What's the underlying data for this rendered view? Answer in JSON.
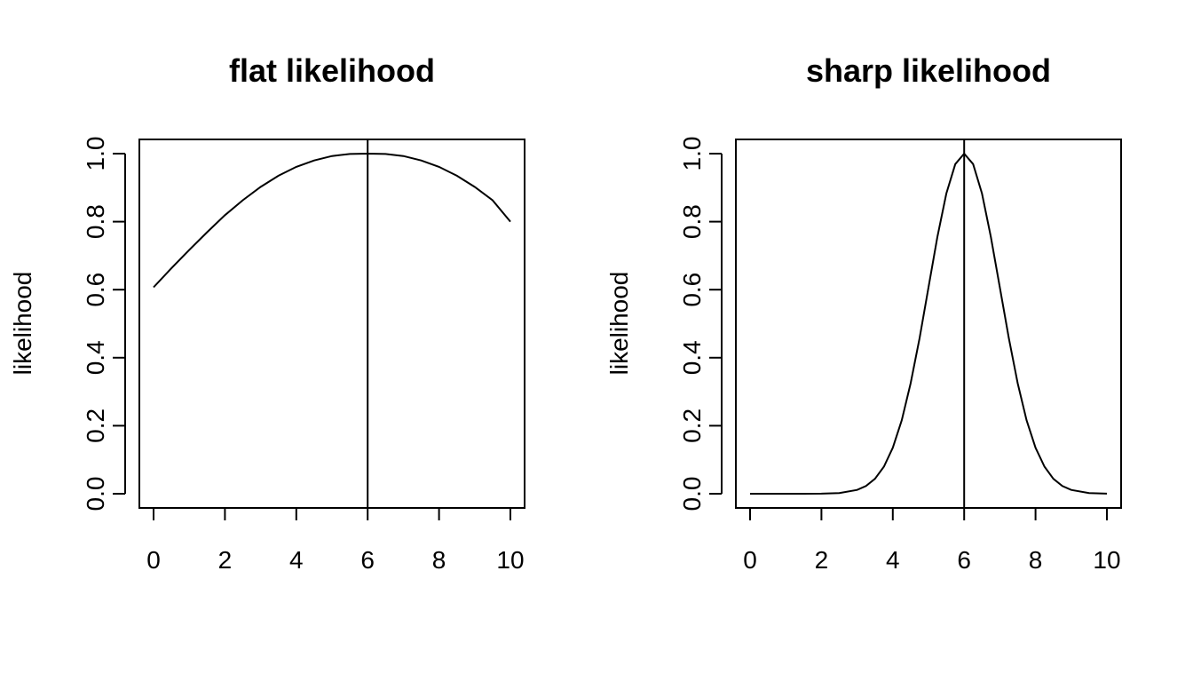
{
  "chart_data": [
    {
      "type": "line",
      "title": "flat likelihood",
      "xlabel": "",
      "ylabel": "likelihood",
      "xlim": [
        0,
        10
      ],
      "ylim": [
        0,
        1
      ],
      "xticks": [
        "0",
        "2",
        "4",
        "6",
        "8",
        "10"
      ],
      "yticks": [
        "0.0",
        "0.2",
        "0.4",
        "0.6",
        "0.8",
        "1.0"
      ],
      "vline": 6,
      "grid": false,
      "series": [
        {
          "x": [
            0,
            0.5,
            1,
            1.5,
            2,
            2.5,
            3,
            3.5,
            4,
            4.5,
            5,
            5.5,
            6,
            6.5,
            7,
            7.5,
            8,
            8.5,
            9,
            9.5,
            10
          ],
          "y": [
            0.607,
            0.663,
            0.717,
            0.769,
            0.819,
            0.863,
            0.902,
            0.935,
            0.961,
            0.98,
            0.993,
            0.999,
            1.0,
            0.999,
            0.993,
            0.98,
            0.961,
            0.935,
            0.902,
            0.863,
            0.8
          ]
        }
      ]
    },
    {
      "type": "line",
      "title": "sharp likelihood",
      "xlabel": "",
      "ylabel": "likelihood",
      "xlim": [
        0,
        10
      ],
      "ylim": [
        0,
        1
      ],
      "xticks": [
        "0",
        "2",
        "4",
        "6",
        "8",
        "10"
      ],
      "yticks": [
        "0.0",
        "0.2",
        "0.4",
        "0.6",
        "0.8",
        "1.0"
      ],
      "vline": 6,
      "grid": false,
      "series": [
        {
          "x": [
            0,
            0.5,
            1,
            1.5,
            2,
            2.5,
            3,
            3.25,
            3.5,
            3.75,
            4,
            4.25,
            4.5,
            4.75,
            5,
            5.25,
            5.5,
            5.75,
            6,
            6.25,
            6.5,
            6.75,
            7,
            7.25,
            7.5,
            7.75,
            8,
            8.25,
            8.5,
            8.75,
            9,
            9.5,
            10
          ],
          "y": [
            0.0,
            0.0,
            0.0,
            0.0,
            0.0003,
            0.0022,
            0.0111,
            0.0228,
            0.0439,
            0.0796,
            0.1353,
            0.2163,
            0.3247,
            0.4578,
            0.6065,
            0.7548,
            0.8825,
            0.9692,
            1.0,
            0.9692,
            0.8825,
            0.7548,
            0.6065,
            0.4578,
            0.3247,
            0.2163,
            0.1353,
            0.0796,
            0.0439,
            0.0228,
            0.0111,
            0.0022,
            0.0003
          ]
        }
      ]
    }
  ]
}
